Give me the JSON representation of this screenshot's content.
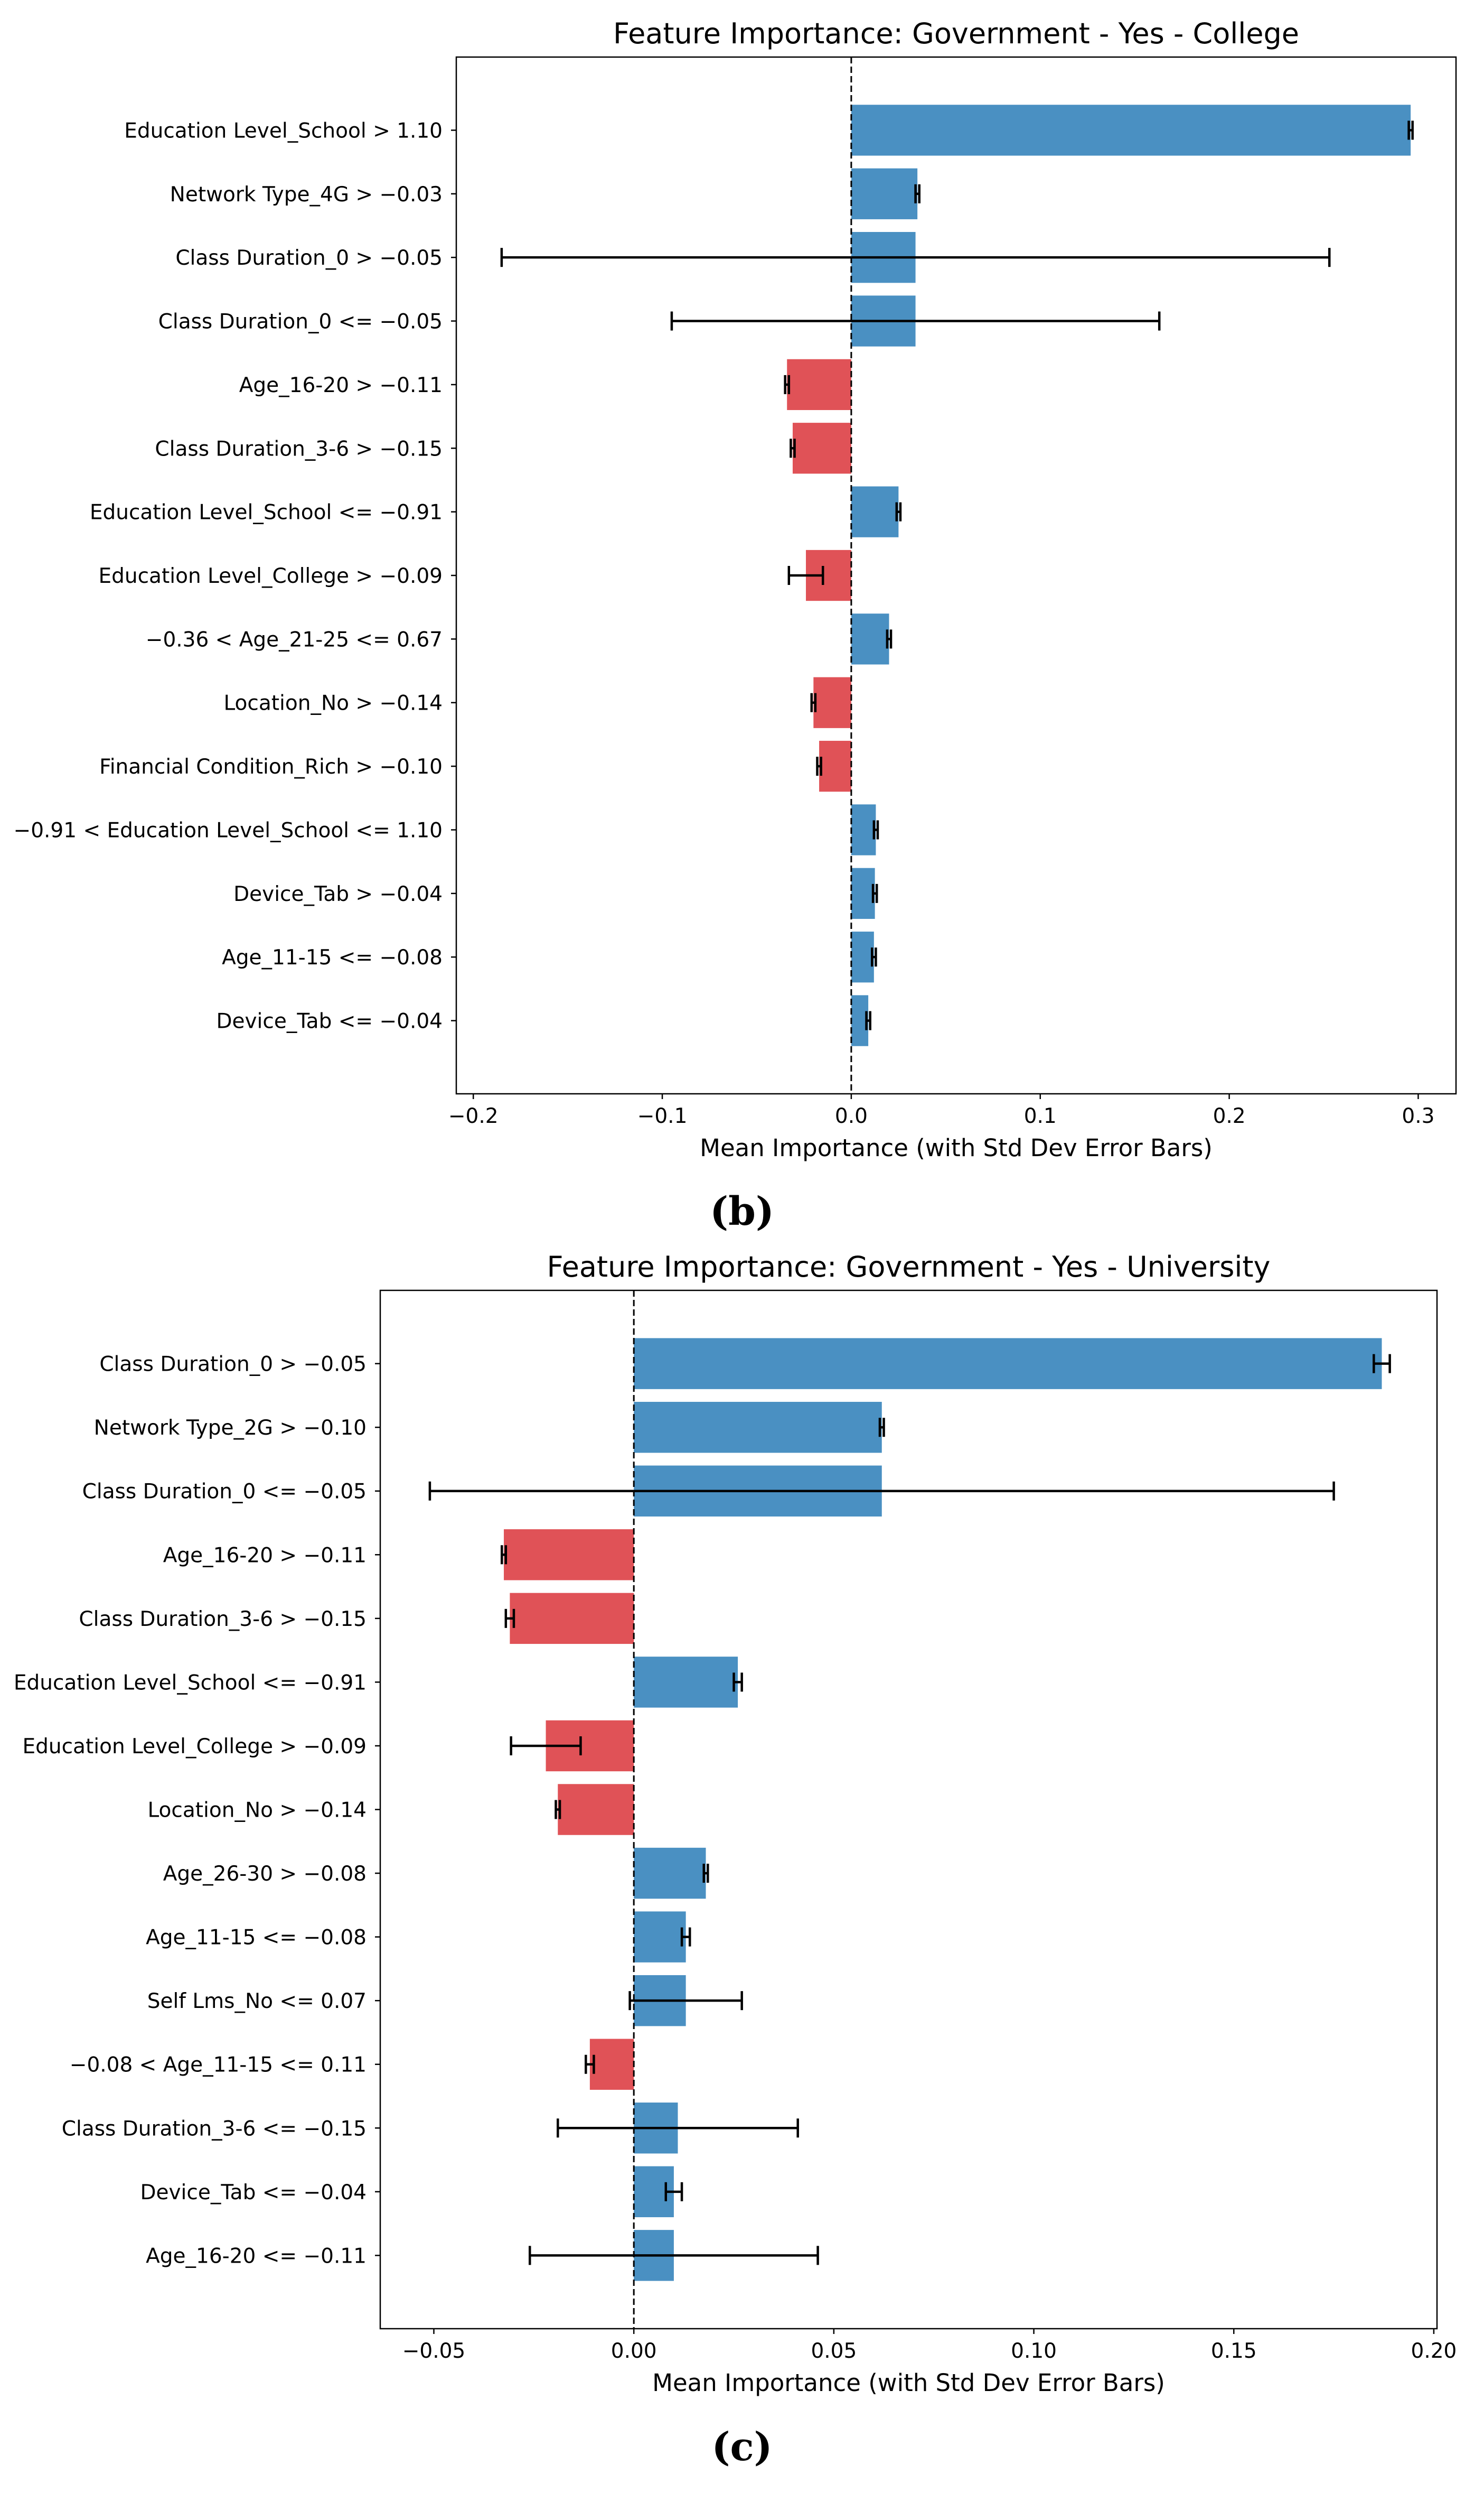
{
  "colors": {
    "positive": "#4a90c2",
    "negative": "#e05257"
  },
  "captions": [
    "(b)",
    "(c)"
  ],
  "chart_data": [
    {
      "type": "bar",
      "orientation": "horizontal",
      "title": "Feature Importance: Government - Yes - College",
      "xlabel": "Mean Importance (with Std Dev Error Bars)",
      "xlim": [
        -0.209,
        0.32
      ],
      "xticks": [
        -0.2,
        -0.1,
        0.0,
        0.1,
        0.2,
        0.3
      ],
      "xtick_labels": [
        "−0.2",
        "−0.1",
        "0.0",
        "0.1",
        "0.2",
        "0.3"
      ],
      "reference_line": 0,
      "categories": [
        "Education Level_School >  1.10",
        "Network Type_4G > −0.03",
        "Class Duration_0 > −0.05",
        "Class Duration_0 <= −0.05",
        "Age_16-20 > −0.11",
        "Class Duration_3-6 > −0.15",
        "Education Level_School <= −0.91",
        "Education Level_College > −0.09",
        "−0.36 < Age_21-25 <=  0.67",
        "Location_No > −0.14",
        "Financial Condition_Rich > −0.10",
        "−0.91 < Education Level_School <=  1.10",
        "Device_Tab > −0.04",
        "Age_11-15 <= −0.08",
        "Device_Tab <= −0.04"
      ],
      "values": [
        0.296,
        0.035,
        0.034,
        0.034,
        -0.034,
        -0.031,
        0.025,
        -0.024,
        0.02,
        -0.02,
        -0.017,
        0.013,
        0.0125,
        0.012,
        0.009
      ],
      "errors": [
        0.001,
        0.001,
        0.219,
        0.129,
        0.001,
        0.001,
        0.001,
        0.009,
        0.001,
        0.001,
        0.001,
        0.001,
        0.001,
        0.001,
        0.001
      ]
    },
    {
      "type": "bar",
      "orientation": "horizontal",
      "title": "Feature Importance: Government - Yes - University",
      "xlabel": "Mean Importance (with Std Dev Error Bars)",
      "xlim": [
        -0.0634,
        0.2008
      ],
      "xticks": [
        -0.05,
        0.0,
        0.05,
        0.1,
        0.15,
        0.2
      ],
      "xtick_labels": [
        "−0.05",
        "0.00",
        "0.05",
        "0.10",
        "0.15",
        "0.20"
      ],
      "reference_line": 0,
      "categories": [
        "Class Duration_0 > −0.05",
        "Network Type_2G > −0.10",
        "Class Duration_0 <= −0.05",
        "Age_16-20 > −0.11",
        "Class Duration_3-6 > −0.15",
        "Education Level_School <= −0.91",
        "Education Level_College > −0.09",
        "Location_No > −0.14",
        "Age_26-30 > −0.08",
        "Age_11-15 <= −0.08",
        "Self Lms_No <=  0.07",
        "−0.08 < Age_11-15 <=  0.11",
        "Class Duration_3-6 <= −0.15",
        "Device_Tab <= −0.04",
        "Age_16-20 <= −0.11"
      ],
      "values": [
        0.187,
        0.062,
        0.062,
        -0.0325,
        -0.031,
        0.026,
        -0.022,
        -0.019,
        0.018,
        0.013,
        0.013,
        -0.011,
        0.011,
        0.01,
        0.01
      ],
      "errors": [
        0.002,
        0.0005,
        0.113,
        0.0005,
        0.001,
        0.001,
        0.0087,
        0.0005,
        0.0005,
        0.001,
        0.014,
        0.001,
        0.03,
        0.002,
        0.036
      ]
    }
  ]
}
